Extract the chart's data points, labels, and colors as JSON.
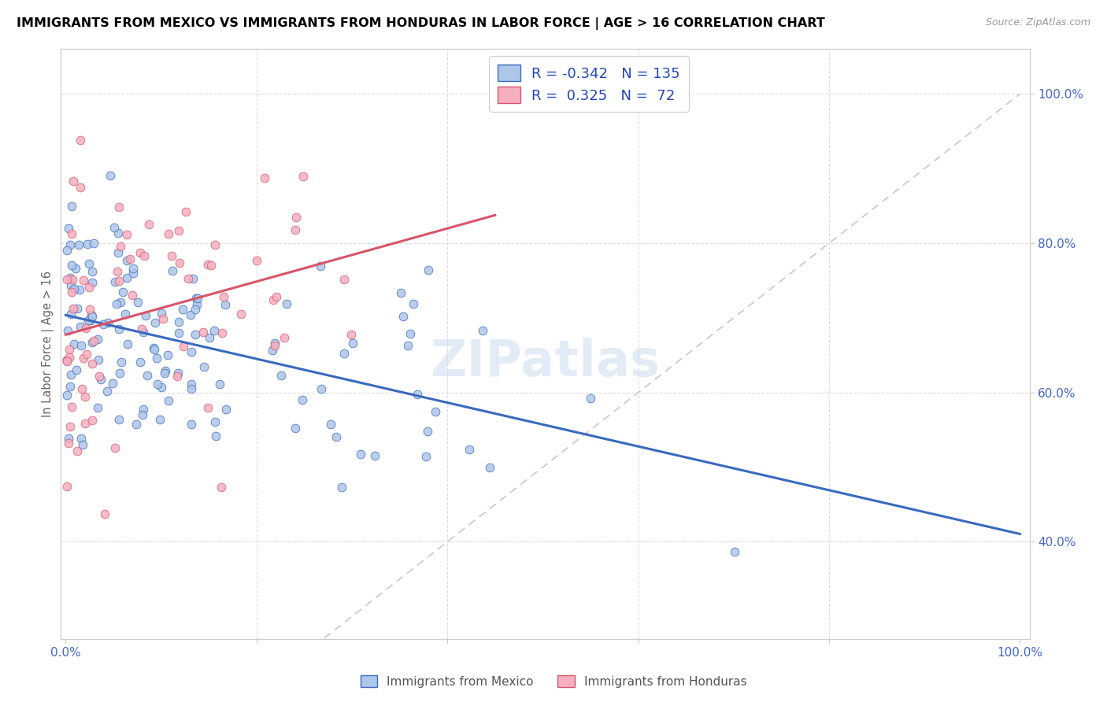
{
  "title": "IMMIGRANTS FROM MEXICO VS IMMIGRANTS FROM HONDURAS IN LABOR FORCE | AGE > 16 CORRELATION CHART",
  "source": "Source: ZipAtlas.com",
  "ylabel": "In Labor Force | Age > 16",
  "mexico_color": "#aec6e8",
  "honduras_color": "#f4b0bf",
  "mexico_line_color": "#3a6abf",
  "honduras_line_color": "#d9546a",
  "diagonal_color": "#c8c8c8",
  "legend_R_mexico": "-0.342",
  "legend_N_mexico": "135",
  "legend_R_honduras": "0.325",
  "legend_N_honduras": "72",
  "legend_color": "#2244bb",
  "watermark": "ZIPatlas",
  "tick_label_color": "#4466cc",
  "ylabel_color": "#666666"
}
